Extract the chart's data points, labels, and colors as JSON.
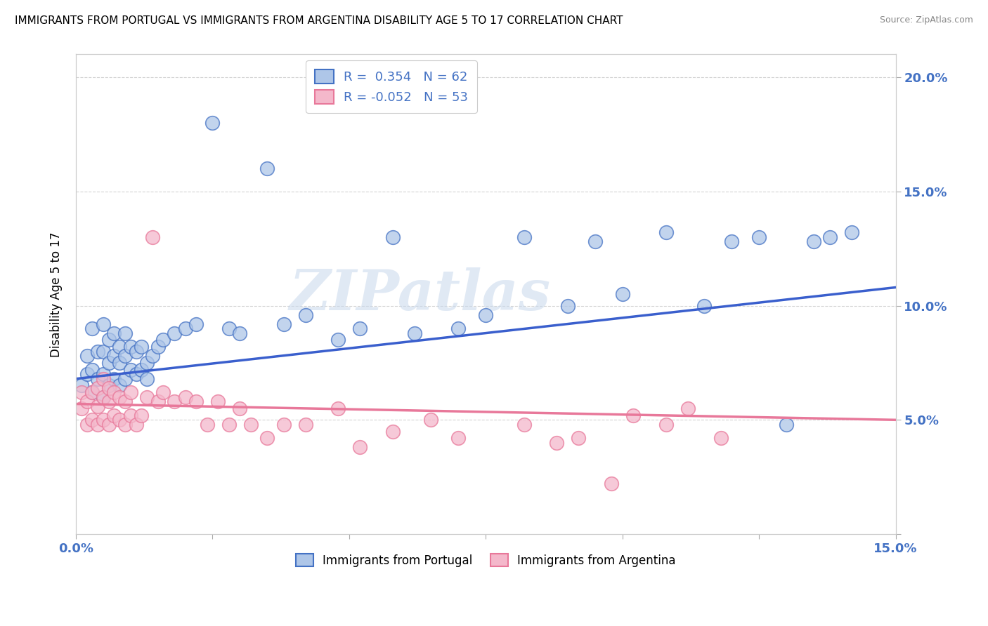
{
  "title": "IMMIGRANTS FROM PORTUGAL VS IMMIGRANTS FROM ARGENTINA DISABILITY AGE 5 TO 17 CORRELATION CHART",
  "source": "Source: ZipAtlas.com",
  "ylabel": "Disability Age 5 to 17",
  "xlim": [
    0.0,
    0.15
  ],
  "ylim": [
    0.0,
    0.21
  ],
  "portugal_color": "#aec6e8",
  "portugal_edge_color": "#4472c4",
  "argentina_color": "#f4b8cb",
  "argentina_edge_color": "#e8789a",
  "portugal_line_color": "#3a5fcd",
  "argentina_line_color": "#e8789a",
  "grid_color": "#d3d3d3",
  "watermark": "ZIPatlas",
  "watermark_color": "#c8d8ec",
  "portugal_x": [
    0.001,
    0.002,
    0.002,
    0.003,
    0.003,
    0.003,
    0.004,
    0.004,
    0.005,
    0.005,
    0.005,
    0.005,
    0.006,
    0.006,
    0.006,
    0.007,
    0.007,
    0.007,
    0.008,
    0.008,
    0.008,
    0.009,
    0.009,
    0.009,
    0.01,
    0.01,
    0.011,
    0.011,
    0.012,
    0.012,
    0.013,
    0.013,
    0.014,
    0.015,
    0.016,
    0.018,
    0.02,
    0.022,
    0.025,
    0.028,
    0.03,
    0.035,
    0.038,
    0.042,
    0.048,
    0.052,
    0.058,
    0.062,
    0.07,
    0.075,
    0.082,
    0.09,
    0.095,
    0.1,
    0.108,
    0.115,
    0.12,
    0.125,
    0.13,
    0.135,
    0.138,
    0.142
  ],
  "portugal_y": [
    0.065,
    0.07,
    0.078,
    0.062,
    0.072,
    0.09,
    0.068,
    0.08,
    0.06,
    0.07,
    0.08,
    0.092,
    0.065,
    0.075,
    0.085,
    0.068,
    0.078,
    0.088,
    0.065,
    0.075,
    0.082,
    0.068,
    0.078,
    0.088,
    0.072,
    0.082,
    0.07,
    0.08,
    0.072,
    0.082,
    0.068,
    0.075,
    0.078,
    0.082,
    0.085,
    0.088,
    0.09,
    0.092,
    0.18,
    0.09,
    0.088,
    0.16,
    0.092,
    0.096,
    0.085,
    0.09,
    0.13,
    0.088,
    0.09,
    0.096,
    0.13,
    0.1,
    0.128,
    0.105,
    0.132,
    0.1,
    0.128,
    0.13,
    0.048,
    0.128,
    0.13,
    0.132
  ],
  "argentina_x": [
    0.001,
    0.001,
    0.002,
    0.002,
    0.003,
    0.003,
    0.004,
    0.004,
    0.004,
    0.005,
    0.005,
    0.005,
    0.006,
    0.006,
    0.006,
    0.007,
    0.007,
    0.008,
    0.008,
    0.009,
    0.009,
    0.01,
    0.01,
    0.011,
    0.012,
    0.013,
    0.014,
    0.015,
    0.016,
    0.018,
    0.02,
    0.022,
    0.024,
    0.026,
    0.028,
    0.03,
    0.032,
    0.035,
    0.038,
    0.042,
    0.048,
    0.052,
    0.058,
    0.065,
    0.07,
    0.082,
    0.088,
    0.092,
    0.098,
    0.102,
    0.108,
    0.112,
    0.118
  ],
  "argentina_y": [
    0.055,
    0.062,
    0.048,
    0.058,
    0.05,
    0.062,
    0.048,
    0.056,
    0.064,
    0.05,
    0.06,
    0.068,
    0.048,
    0.058,
    0.064,
    0.052,
    0.062,
    0.05,
    0.06,
    0.048,
    0.058,
    0.052,
    0.062,
    0.048,
    0.052,
    0.06,
    0.13,
    0.058,
    0.062,
    0.058,
    0.06,
    0.058,
    0.048,
    0.058,
    0.048,
    0.055,
    0.048,
    0.042,
    0.048,
    0.048,
    0.055,
    0.038,
    0.045,
    0.05,
    0.042,
    0.048,
    0.04,
    0.042,
    0.022,
    0.052,
    0.048,
    0.055,
    0.042
  ]
}
